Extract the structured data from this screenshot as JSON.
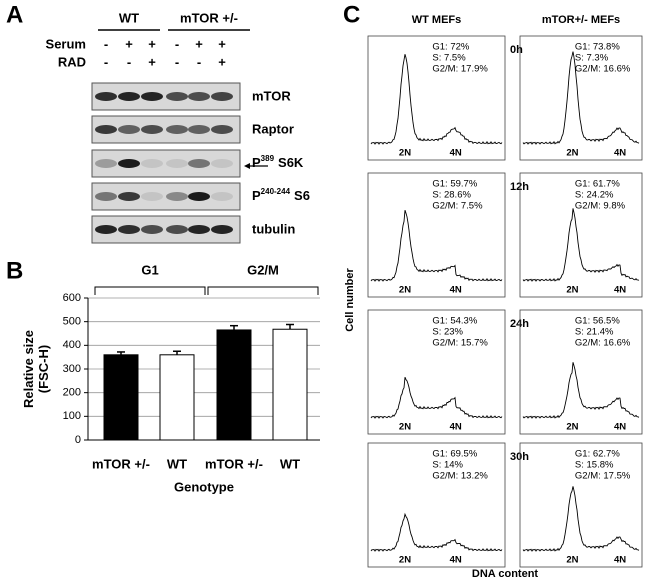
{
  "panel_a": {
    "label": "A",
    "groups": [
      "WT",
      "mTOR +/-"
    ],
    "rows": [
      {
        "name": "Serum",
        "signs": [
          "-",
          "+",
          "+",
          "-",
          "+",
          "+"
        ]
      },
      {
        "name": "RAD",
        "signs": [
          "-",
          "-",
          "+",
          "-",
          "-",
          "+"
        ]
      }
    ],
    "blots": [
      {
        "text": "mTOR"
      },
      {
        "text": "Raptor"
      },
      {
        "prefix": "P",
        "sup": "389",
        "suffix": "S6K"
      },
      {
        "prefix": "P",
        "sup": "240-244",
        "suffix": "S6"
      },
      {
        "text": "tubulin"
      }
    ]
  },
  "panel_b": {
    "label": "B",
    "type": "bar",
    "groups": [
      "G1",
      "G2/M"
    ],
    "categories": [
      "mTOR +/-",
      "WT",
      "mTOR +/-",
      "WT"
    ],
    "values": [
      360,
      360,
      465,
      468
    ],
    "errors": [
      12,
      15,
      18,
      20
    ],
    "colors": [
      "#000000",
      "#ffffff",
      "#000000",
      "#ffffff"
    ],
    "ylabel": [
      "Relative size",
      "(FSC-H)"
    ],
    "xlabel": "Genotype",
    "ylim": [
      0,
      600
    ],
    "yticks": [
      0,
      100,
      200,
      300,
      400,
      500,
      600
    ],
    "grid": true
  },
  "panel_c": {
    "label": "C",
    "columns": [
      "WT MEFs",
      "mTOR+/- MEFs"
    ],
    "times": [
      "0h",
      "12h",
      "24h",
      "30h"
    ],
    "stats": [
      [
        [
          "G1: 72%",
          "S: 7.5%",
          "G2/M: 17.9%"
        ],
        [
          "G1: 73.8%",
          "S: 7.3%",
          "G2/M: 16.6%"
        ]
      ],
      [
        [
          "G1: 59.7%",
          "S: 28.6%",
          "G2/M: 7.5%"
        ],
        [
          "G1: 61.7%",
          "S: 24.2%",
          "G2/M: 9.8%"
        ]
      ],
      [
        [
          "G1: 54.3%",
          "S: 23%",
          "G2/M: 15.7%"
        ],
        [
          "G1: 56.5%",
          "S: 21.4%",
          "G2/M: 16.6%"
        ]
      ],
      [
        [
          "G1: 69.5%",
          "S: 14%",
          "G2/M: 13.2%"
        ],
        [
          "G1: 62.7%",
          "S: 15.8%",
          "G2/M: 17.5%"
        ]
      ]
    ],
    "axis_ticks": [
      "2N",
      "4N"
    ],
    "ylabel": "Cell number",
    "xlabel": "DNA content"
  }
}
